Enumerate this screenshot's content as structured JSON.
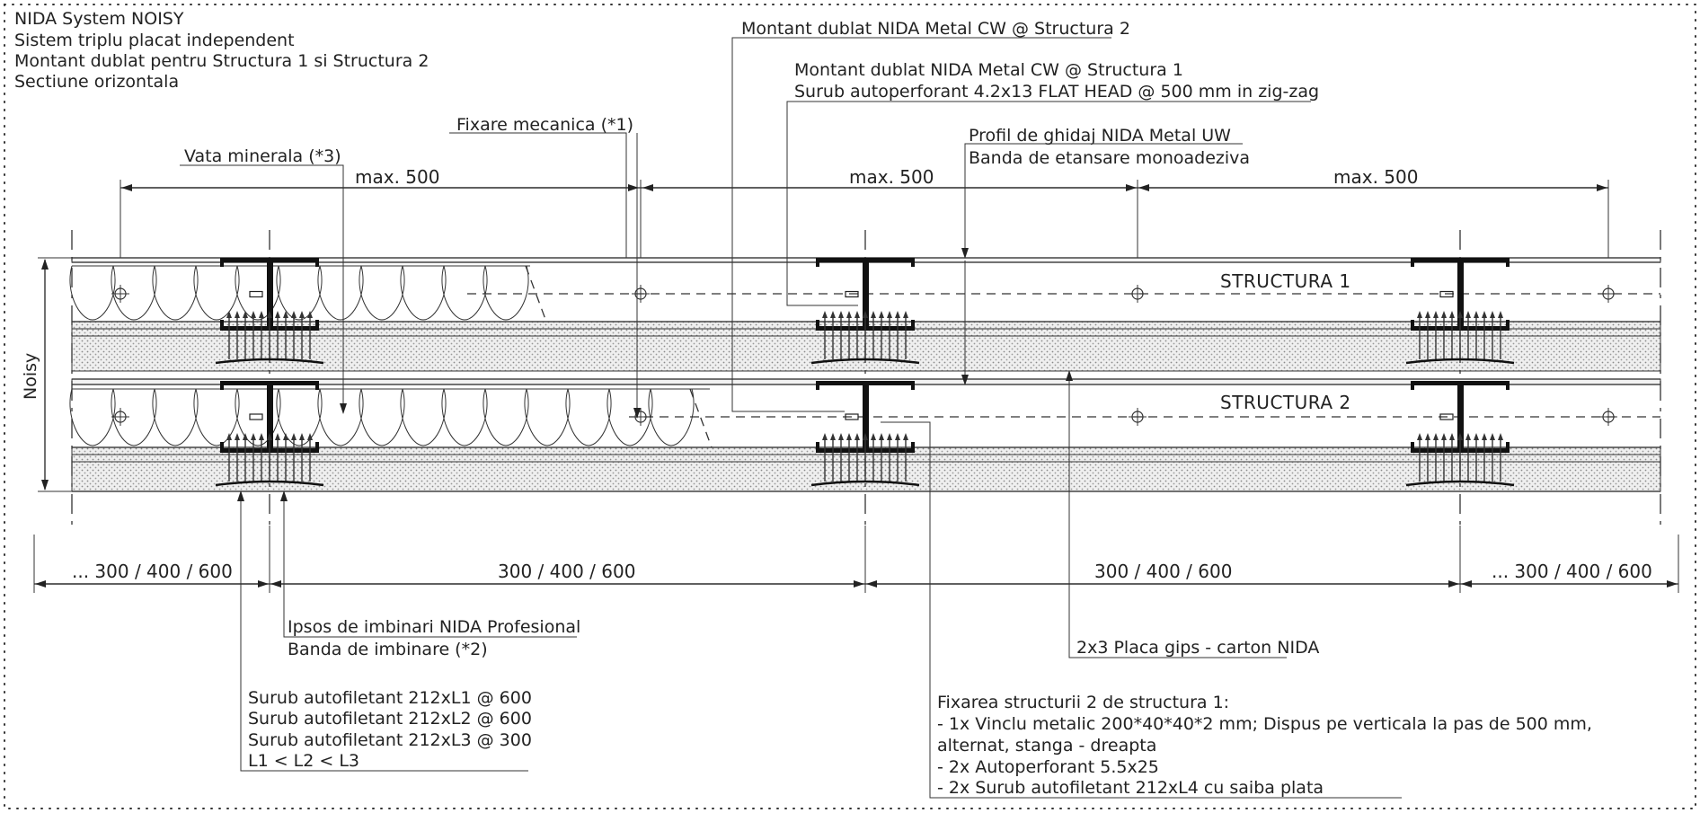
{
  "title_block": {
    "lines": [
      "NIDA System NOISY",
      "Sistem triplu placat independent",
      "Montant dublat pentru Structura 1 si Structura 2",
      "Sectiune orizontala"
    ]
  },
  "labels": {
    "montant_s2": "Montant dublat NIDA Metal CW @ Structura 2",
    "montant_s1": "Montant dublat NIDA Metal CW @ Structura 1",
    "surub_flat": "Surub autoperforant 4.2x13 FLAT HEAD @ 500 mm in zig-zag",
    "fixare_mecanica": "Fixare mecanica (*1)",
    "vata_minerala": "Vata minerala (*3)",
    "profil_uw": "Profil de ghidaj NIDA Metal UW",
    "banda_etansare": "Banda de etansare monoadeziva",
    "structura_1": "STRUCTURA 1",
    "structura_2": "STRUCTURA 2",
    "noisy": "Noisy",
    "ipsos": "Ipsos de imbinari NIDA Profesional",
    "banda_imbinare": "Banda de imbinare (*2)",
    "placa_gips": "2x3 Placa gips - carton NIDA",
    "suruburi": [
      "Surub autofiletant 212xL1 @ 600",
      "Surub autofiletant 212xL2 @ 600",
      "Surub autofiletant 212xL3 @ 300",
      "L1 < L2 < L3"
    ],
    "fixarea": [
      "Fixarea structurii 2 de structura 1:",
      "- 1x Vinclu metalic 200*40*40*2 mm; Dispus pe verticala la pas de 500 mm,",
      "alternat, stanga - dreapta",
      "- 2x Autoperforant 5.5x25",
      "- 2x Surub autofiletant 212xL4 cu saiba plata"
    ]
  },
  "dimensions": {
    "top": [
      "max. 500",
      "max. 500",
      "max. 500"
    ],
    "bottom": [
      "... 300 / 400 / 600",
      "300 / 400 / 600",
      "300 / 400 / 600",
      "... 300 / 400 / 600"
    ]
  },
  "colors": {
    "line": "#222222",
    "steel": "#111111",
    "board_fill": "#e4e4e4",
    "frame_dots": "#333333"
  }
}
